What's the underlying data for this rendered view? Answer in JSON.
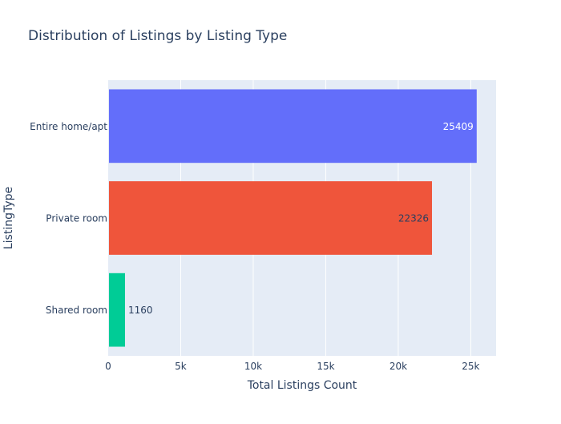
{
  "chart_data": {
    "type": "bar",
    "orientation": "horizontal",
    "title": "Distribution of Listings by Listing Type",
    "xlabel": "Total Listings Count",
    "ylabel": "ListingType",
    "categories": [
      "Entire home/apt",
      "Private room",
      "Shared room"
    ],
    "values": [
      25409,
      22326,
      1160
    ],
    "value_labels": [
      "25409",
      "22326",
      "1160"
    ],
    "colors": [
      "#636efa",
      "#ef553b",
      "#00cc96"
    ],
    "xlim": [
      0,
      26746
    ],
    "xticks": [
      0,
      5000,
      10000,
      15000,
      20000,
      25000
    ],
    "xtick_labels": [
      "0",
      "5k",
      "10k",
      "15k",
      "20k",
      "25k"
    ],
    "grid": true,
    "plot_background": "#e5ecf6",
    "gridline_color": "#ffffff",
    "text_color": "#2a3f5f",
    "legend": false
  }
}
